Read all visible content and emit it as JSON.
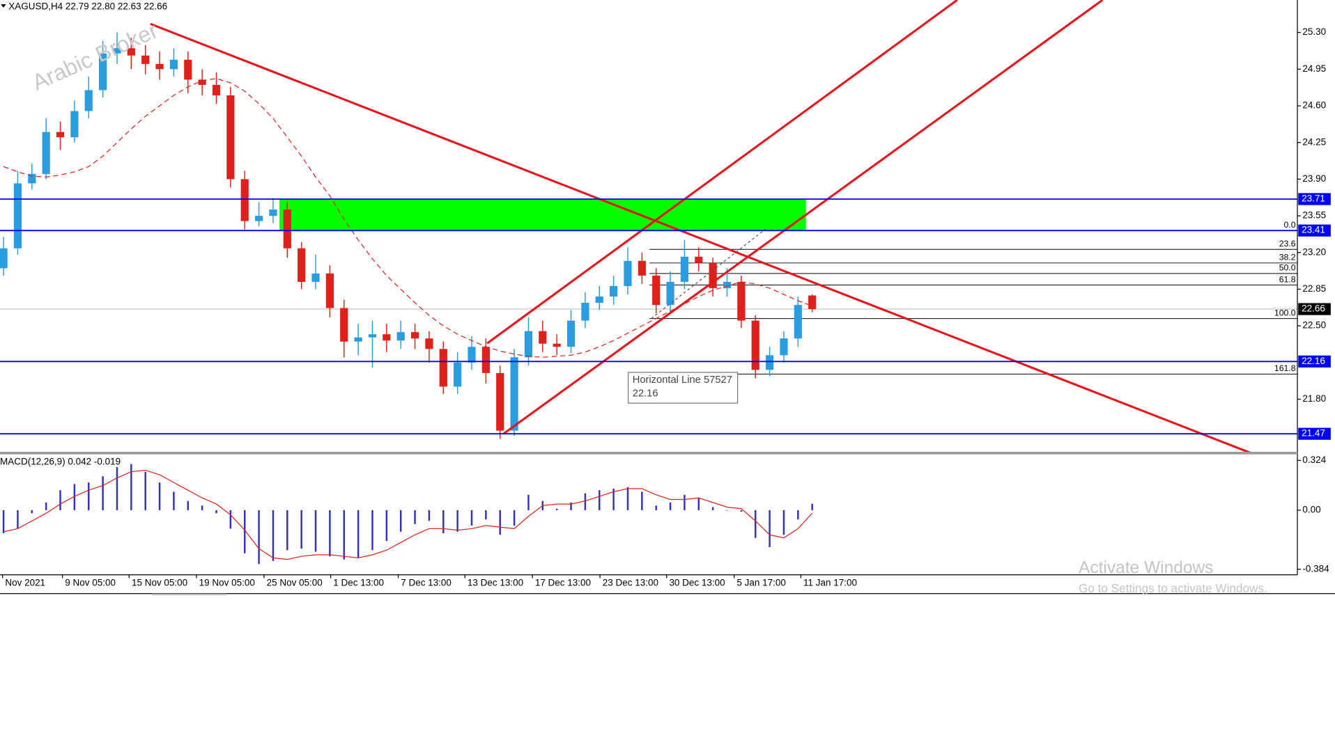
{
  "chart_data": {
    "type": "candlestick",
    "title": "XAGUSD,H4  22.79 22.80 22.63 22.66",
    "watermark": "Arabic Broker",
    "up_color": "#2a9de0",
    "down_color": "#e0201b",
    "xlim": [
      -0.25,
      91.2
    ],
    "xticks": [
      {
        "value": -0.07,
        "label": "Nov 2021"
      },
      {
        "value": 4.15,
        "label": "9 Nov 05:00"
      },
      {
        "value": 8.85,
        "label": "15 Nov 05:00"
      },
      {
        "value": 13.6,
        "label": "19 Nov 05:00"
      },
      {
        "value": 18.36,
        "label": "25 Nov 05:00"
      },
      {
        "value": 23.06,
        "label": "1 Dec 13:00"
      },
      {
        "value": 27.82,
        "label": "7 Dec 13:00"
      },
      {
        "value": 32.52,
        "label": "13 Dec 13:00"
      },
      {
        "value": 37.28,
        "label": "17 Dec 13:00"
      },
      {
        "value": 42.04,
        "label": "23 Dec 13:00"
      },
      {
        "value": 46.74,
        "label": "30 Dec 13:00"
      },
      {
        "value": 51.5,
        "label": "5 Jan 17:00"
      },
      {
        "value": 56.2,
        "label": "11 Jan 17:00"
      }
    ],
    "ylim": [
      21.29,
      25.61
    ],
    "yticks": [
      {
        "value": 25.3,
        "label": "25.30"
      },
      24.95,
      {
        "value": 24.6,
        "label": "24.60"
      },
      24.25,
      {
        "value": 23.9,
        "label": "23.90"
      },
      23.55,
      {
        "value": 23.2,
        "label": "23.20"
      },
      22.85,
      {
        "value": 22.5,
        "label": "22.50"
      },
      {
        "value": 21.8,
        "label": "21.80"
      }
    ],
    "open": [
      23.05,
      23.24,
      23.86,
      23.95,
      24.35,
      24.3,
      24.55,
      24.75,
      25.1,
      25.15,
      25.08,
      25.0,
      24.95,
      25.04,
      24.85,
      24.8,
      24.7,
      23.9,
      23.5,
      23.55,
      23.61,
      23.24,
      22.92,
      23.0,
      22.67,
      22.35,
      22.39,
      22.42,
      22.36,
      22.44,
      22.38,
      22.28,
      21.92,
      22.15,
      22.3,
      22.05,
      21.5,
      22.2,
      22.45,
      22.33,
      22.3,
      22.55,
      22.72,
      22.78,
      22.88,
      23.12,
      22.98,
      22.7,
      22.92,
      23.16,
      23.1,
      22.86,
      22.92,
      22.55,
      22.08,
      22.22,
      22.38,
      22.79
    ],
    "high": [
      23.35,
      23.98,
      24.05,
      24.48,
      24.45,
      24.65,
      24.88,
      25.22,
      25.3,
      25.25,
      25.18,
      25.12,
      25.15,
      25.12,
      24.95,
      24.92,
      24.78,
      23.98,
      23.68,
      23.72,
      23.68,
      23.3,
      23.18,
      23.08,
      22.75,
      22.52,
      22.55,
      22.52,
      22.55,
      22.52,
      22.45,
      22.35,
      22.25,
      22.4,
      22.38,
      22.12,
      22.28,
      22.58,
      22.55,
      22.42,
      22.65,
      22.82,
      22.88,
      22.98,
      23.25,
      23.2,
      23.05,
      23.02,
      23.32,
      23.25,
      23.15,
      23.05,
      22.98,
      22.6,
      22.3,
      22.45,
      22.78,
      22.8
    ],
    "low": [
      22.98,
      23.18,
      23.8,
      23.9,
      24.18,
      24.25,
      24.48,
      24.68,
      25.0,
      24.95,
      24.9,
      24.85,
      24.88,
      24.72,
      24.7,
      24.62,
      23.82,
      23.42,
      23.45,
      23.48,
      23.15,
      22.85,
      22.85,
      22.58,
      22.2,
      22.22,
      22.1,
      22.25,
      22.28,
      22.28,
      22.15,
      21.85,
      21.85,
      22.08,
      21.95,
      21.42,
      21.45,
      22.12,
      22.25,
      22.22,
      22.24,
      22.48,
      22.65,
      22.7,
      22.8,
      22.9,
      22.62,
      22.62,
      22.85,
      23.02,
      22.78,
      22.78,
      22.48,
      22.0,
      22.02,
      22.15,
      22.3,
      22.63
    ],
    "close": [
      23.24,
      23.86,
      23.95,
      24.35,
      24.3,
      24.55,
      24.75,
      25.1,
      25.15,
      25.08,
      25.0,
      24.95,
      25.04,
      24.85,
      24.8,
      24.7,
      23.9,
      23.5,
      23.55,
      23.61,
      23.24,
      22.92,
      23.0,
      22.67,
      22.35,
      22.39,
      22.42,
      22.36,
      22.44,
      22.38,
      22.28,
      21.92,
      22.15,
      22.3,
      22.05,
      21.5,
      22.2,
      22.45,
      22.33,
      22.3,
      22.55,
      22.72,
      22.78,
      22.88,
      23.12,
      22.98,
      22.7,
      22.92,
      23.16,
      23.1,
      22.86,
      22.92,
      22.55,
      22.08,
      22.22,
      22.38,
      22.7,
      22.66
    ],
    "ma": {
      "color": "#e0201b",
      "values": [
        24.02,
        23.97,
        23.93,
        23.92,
        23.94,
        23.97,
        24.02,
        24.12,
        24.25,
        24.38,
        24.5,
        24.6,
        24.7,
        24.78,
        24.84,
        24.86,
        24.82,
        24.74,
        24.62,
        24.48,
        24.3,
        24.12,
        23.92,
        23.74,
        23.52,
        23.32,
        23.14,
        22.98,
        22.85,
        22.72,
        22.6,
        22.5,
        22.42,
        22.36,
        22.3,
        22.26,
        22.23,
        22.21,
        22.2,
        22.21,
        22.22,
        22.25,
        22.3,
        22.36,
        22.43,
        22.5,
        22.57,
        22.64,
        22.71,
        22.78,
        22.84,
        22.88,
        22.92,
        22.9,
        22.86,
        22.8,
        22.74,
        22.69
      ]
    },
    "zone": {
      "from": 23.41,
      "to": 23.71,
      "color": "#00ff00"
    },
    "hlines": {
      "color": "#0000ff",
      "values": [
        23.71,
        23.41,
        22.16,
        21.47
      ]
    },
    "current_price": 22.66,
    "fibonacci": [
      {
        "label": "0.0",
        "price": 23.41
      },
      {
        "label": "23.6",
        "price": 23.23
      },
      {
        "label": "38.2",
        "price": 23.1
      },
      {
        "label": "50.0",
        "price": 23.0
      },
      {
        "label": "61.8",
        "price": 22.89
      },
      {
        "label": "100.0",
        "price": 22.57
      },
      {
        "label": "161.8",
        "price": 22.04
      }
    ],
    "tooltip": {
      "title": "Horizontal Line 57527",
      "value": 22.16
    },
    "macd": {
      "title": "MACD(12,26,9) 0.042 -0.019",
      "hist_color": "#3030c8",
      "signal_color": "#e0201b",
      "ylim": [
        -0.42,
        0.363
      ],
      "yticks": [
        0.324,
        {
          "value": 0,
          "label": "0.00"
        },
        -0.384
      ],
      "histogram": [
        -0.15,
        -0.12,
        -0.02,
        0.05,
        0.13,
        0.17,
        0.18,
        0.22,
        0.28,
        0.3,
        0.25,
        0.18,
        0.12,
        0.06,
        0.03,
        -0.02,
        -0.12,
        -0.28,
        -0.35,
        -0.33,
        -0.26,
        -0.25,
        -0.27,
        -0.3,
        -0.32,
        -0.31,
        -0.26,
        -0.2,
        -0.14,
        -0.09,
        -0.07,
        -0.15,
        -0.14,
        -0.1,
        -0.06,
        -0.16,
        -0.1,
        0.1,
        0.06,
        0.01,
        0.05,
        0.11,
        0.13,
        0.14,
        0.15,
        0.12,
        0.03,
        0.05,
        0.1,
        0.08,
        0.02,
        0.0,
        -0.01,
        -0.18,
        -0.24,
        -0.16,
        -0.06,
        0.042
      ],
      "signal": [
        -0.14,
        -0.12,
        -0.07,
        -0.02,
        0.04,
        0.09,
        0.13,
        0.16,
        0.21,
        0.25,
        0.26,
        0.23,
        0.18,
        0.13,
        0.08,
        0.04,
        -0.03,
        -0.13,
        -0.25,
        -0.31,
        -0.32,
        -0.3,
        -0.29,
        -0.29,
        -0.3,
        -0.31,
        -0.29,
        -0.26,
        -0.21,
        -0.16,
        -0.12,
        -0.12,
        -0.13,
        -0.12,
        -0.1,
        -0.11,
        -0.12,
        -0.04,
        0.03,
        0.04,
        0.04,
        0.06,
        0.09,
        0.12,
        0.14,
        0.14,
        0.1,
        0.07,
        0.07,
        0.08,
        0.05,
        0.02,
        0.01,
        -0.07,
        -0.16,
        -0.18,
        -0.12,
        -0.019
      ]
    },
    "system_notice": {
      "title": "Activate Windows",
      "subtitle": "Go to Settings to activate Windows."
    }
  }
}
